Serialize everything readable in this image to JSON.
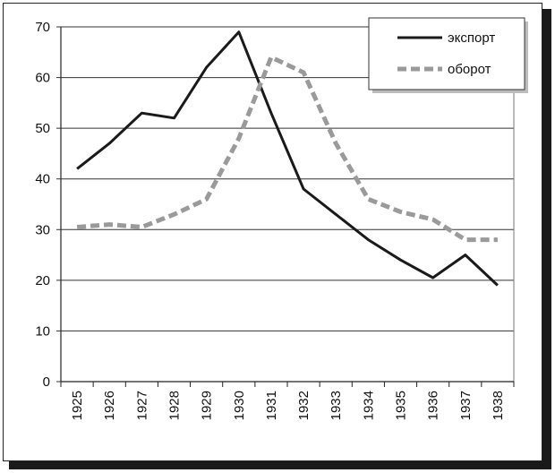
{
  "chart_data": {
    "type": "line",
    "x": [
      "1925",
      "1926",
      "1927",
      "1928",
      "1929",
      "1930",
      "1931",
      "1932",
      "1933",
      "1934",
      "1935",
      "1936",
      "1937",
      "1938"
    ],
    "ylim": [
      0,
      70
    ],
    "yticks": [
      0,
      10,
      20,
      30,
      40,
      50,
      60,
      70
    ],
    "grid": "horizontal",
    "legend_position": "top-right",
    "series": [
      {
        "name": "экспорт",
        "style": "solid",
        "color": "#1a1a1a",
        "values": [
          42,
          47,
          53,
          52,
          62,
          69,
          53,
          38,
          33,
          28,
          24,
          20.5,
          25,
          19
        ]
      },
      {
        "name": "оборот",
        "style": "dashed",
        "color": "#9a9a9a",
        "values": [
          30.5,
          31,
          30.5,
          33,
          36,
          48,
          64,
          61,
          47,
          36,
          33.5,
          32,
          28,
          28
        ]
      }
    ]
  }
}
